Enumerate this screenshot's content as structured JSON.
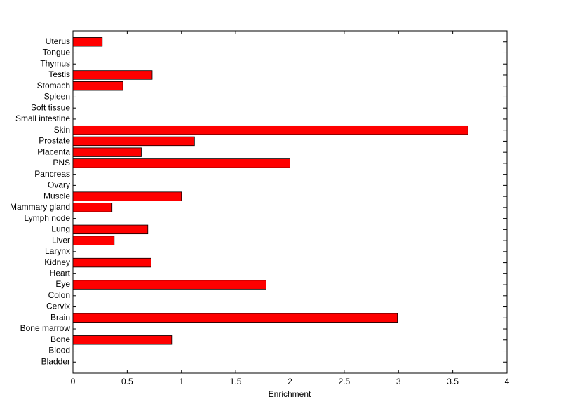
{
  "chart_data": {
    "type": "barh",
    "xlabel": "Enrichment",
    "categories": [
      "Bladder",
      "Blood",
      "Bone",
      "Bone marrow",
      "Brain",
      "Cervix",
      "Colon",
      "Eye",
      "Heart",
      "Kidney",
      "Larynx",
      "Liver",
      "Lung",
      "Lymph node",
      "Mammary gland",
      "Muscle",
      "Ovary",
      "Pancreas",
      "PNS",
      "Placenta",
      "Prostate",
      "Skin",
      "Small intestine",
      "Soft tissue",
      "Spleen",
      "Stomach",
      "Testis",
      "Thymus",
      "Tongue",
      "Uterus"
    ],
    "values": [
      0,
      0,
      0.91,
      0,
      2.99,
      0,
      0,
      1.78,
      0,
      0.72,
      0,
      0.38,
      0.69,
      0,
      0.36,
      1.0,
      0,
      0,
      2.0,
      0.63,
      1.12,
      3.64,
      0,
      0,
      0,
      0.46,
      0.73,
      0,
      0,
      0.27
    ],
    "color": "#ff0000",
    "xlim": [
      0,
      4
    ],
    "xticks": [
      0,
      0.5,
      1,
      1.5,
      2,
      2.5,
      3,
      3.5,
      4
    ],
    "grid": false
  }
}
